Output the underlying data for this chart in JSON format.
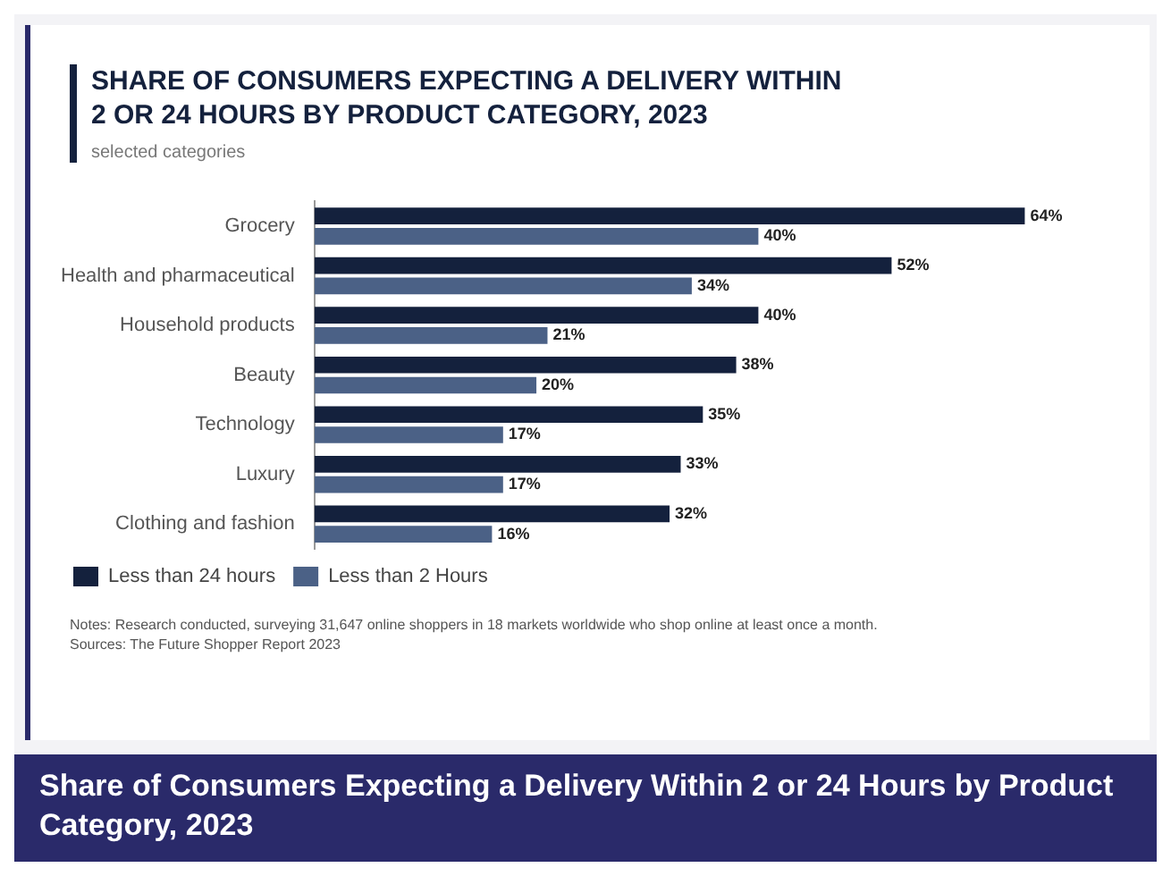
{
  "chart_data": {
    "type": "bar",
    "orientation": "horizontal",
    "title": "SHARE OF CONSUMERS EXPECTING A DELIVERY WITHIN 2 OR 24 HOURS BY PRODUCT CATEGORY, 2023",
    "subtitle": "selected categories",
    "categories": [
      "Grocery",
      "Health and pharmaceutical",
      "Household products",
      "Beauty",
      "Technology",
      "Luxury",
      "Clothing and fashion"
    ],
    "series": [
      {
        "name": "Less than 24 hours",
        "color": "#14213d",
        "values": [
          64,
          52,
          40,
          38,
          35,
          33,
          32
        ],
        "value_labels": [
          "64%",
          "52%",
          "40%",
          "38%",
          "35%",
          "33%",
          "32%"
        ]
      },
      {
        "name": "Less than 2 Hours",
        "color": "#4b6186",
        "values": [
          40,
          34,
          21,
          20,
          17,
          17,
          16
        ],
        "value_labels": [
          "40%",
          "34%",
          "21%",
          "20%",
          "17%",
          "17%",
          "16%"
        ]
      }
    ],
    "legend": "bottom left",
    "tick_labels": "y",
    "annotations": [
      "Notes: Research conducted, surveying 31,647 online shoppers in 18 markets worldwide who shop online at least once a month.",
      "Sources: The Future Shopper Report 2023",
      "Share of Consumers Expecting a Delivery Within 2 or 24 Hours by Product Category, 2023"
    ]
  }
}
